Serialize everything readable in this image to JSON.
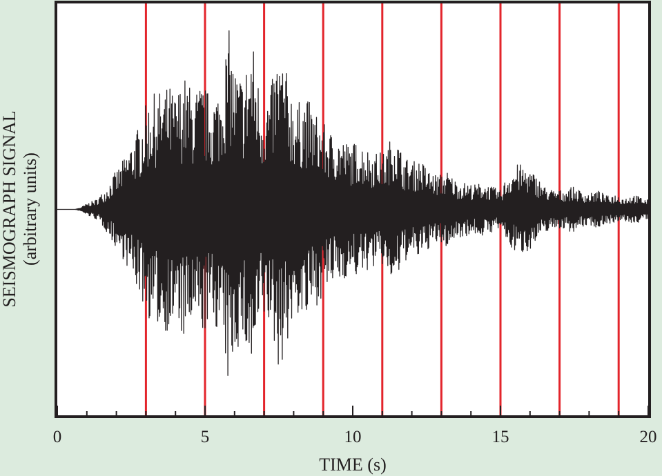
{
  "chart_data": {
    "type": "line",
    "title": "",
    "xlabel": "TIME (s)",
    "ylabel_line1": "SEISMOGRAPH SIGNAL",
    "ylabel_line2": "(arbitrary units)",
    "xlim": [
      0,
      20
    ],
    "ylim": [
      -1,
      1
    ],
    "x_ticks": [
      0,
      5,
      10,
      15,
      20
    ],
    "x_minor_ticks": [
      1,
      2,
      3,
      4,
      6,
      7,
      8,
      9,
      11,
      12,
      13,
      14,
      16,
      17,
      18,
      19
    ],
    "markers": {
      "color": "#e3242b",
      "x": [
        3,
        5,
        7,
        9,
        11,
        13,
        15,
        17,
        19
      ]
    },
    "series": [
      {
        "color": "#231f20",
        "x": [
          0,
          0.3,
          0.6,
          0.8,
          1.0,
          1.3,
          1.6,
          1.9,
          2.2,
          2.5,
          2.8,
          3.0,
          3.2,
          3.5,
          3.8,
          4.0,
          4.3,
          4.6,
          4.9,
          5.2,
          5.5,
          5.8,
          6.0,
          6.3,
          6.6,
          6.9,
          7.2,
          7.5,
          7.8,
          8.1,
          8.4,
          8.7,
          9.0,
          9.3,
          9.6,
          9.9,
          10.2,
          10.5,
          10.8,
          11.1,
          11.4,
          11.7,
          12.0,
          12.3,
          12.6,
          12.9,
          13.2,
          13.5,
          13.8,
          14.1,
          14.4,
          14.7,
          15.0,
          15.3,
          15.6,
          15.9,
          16.2,
          16.5,
          16.8,
          17.1,
          17.4,
          17.7,
          18.0,
          18.3,
          18.6,
          18.9,
          19.2,
          19.5,
          19.8,
          20.0
        ],
        "y": [
          0.0,
          0.0,
          0.0,
          0.01,
          0.03,
          0.05,
          0.1,
          0.18,
          0.25,
          0.35,
          0.45,
          0.55,
          0.6,
          0.62,
          0.65,
          0.6,
          0.7,
          0.62,
          0.66,
          0.6,
          0.64,
          0.95,
          0.75,
          0.7,
          0.9,
          0.58,
          0.62,
          0.85,
          0.7,
          0.55,
          0.6,
          0.52,
          0.45,
          0.4,
          0.38,
          0.34,
          0.36,
          0.32,
          0.3,
          0.3,
          0.42,
          0.28,
          0.25,
          0.26,
          0.2,
          0.18,
          0.2,
          0.15,
          0.14,
          0.13,
          0.14,
          0.12,
          0.1,
          0.2,
          0.24,
          0.22,
          0.18,
          0.12,
          0.1,
          0.1,
          0.12,
          0.1,
          0.08,
          0.1,
          0.07,
          0.08,
          0.06,
          0.08,
          0.06,
          0.05
        ]
      }
    ],
    "grid": false
  }
}
